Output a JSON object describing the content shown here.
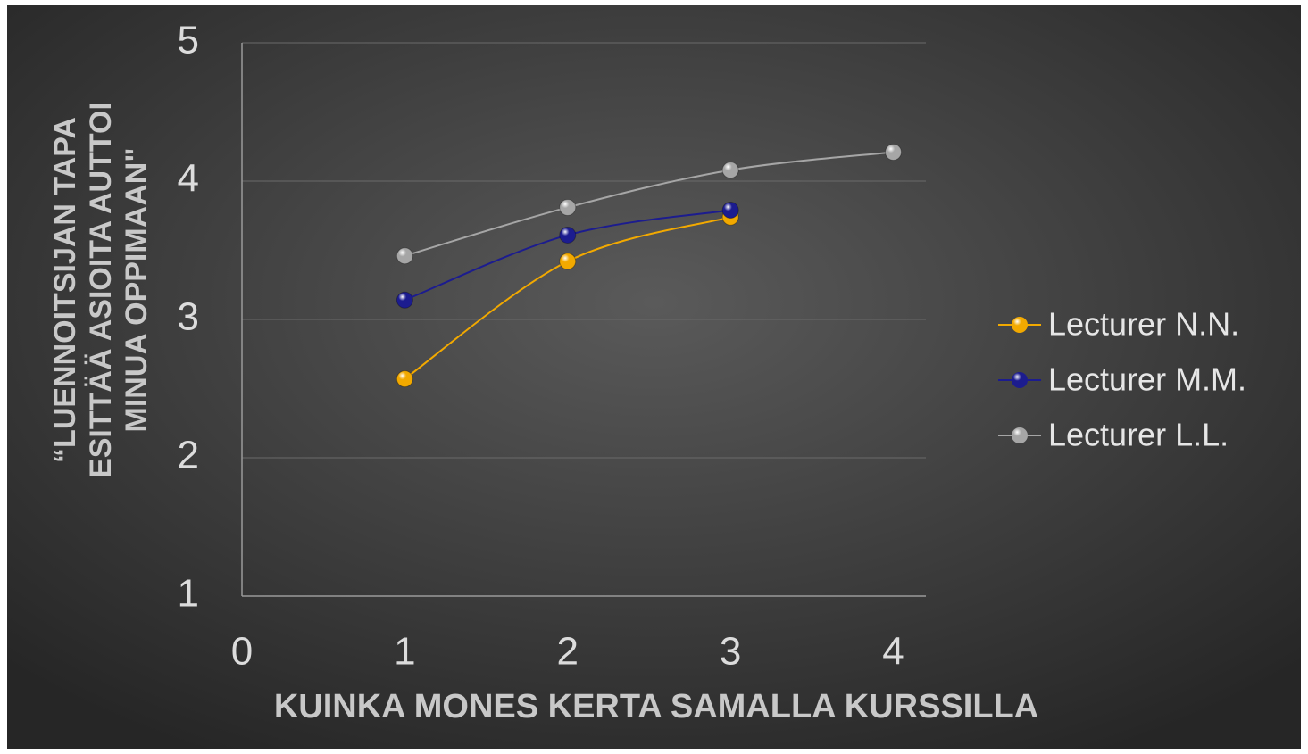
{
  "chart_data": {
    "type": "line",
    "xlabel": "KUINKA MONES KERTA SAMALLA KURSSILLA",
    "ylabel": [
      "“LUENNOITSIJAN TAPA",
      "ESITTÄÄ ASIOITA AUTTOI",
      "MINUA OPPIMAAN\""
    ],
    "xlim": [
      0,
      4.2
    ],
    "xticks": [
      0,
      1,
      2,
      3,
      4
    ],
    "ylim": [
      1,
      5
    ],
    "yticks": [
      1,
      2,
      3,
      4,
      5
    ],
    "grid": true,
    "legend": "right",
    "smooth": true,
    "series": [
      {
        "name": "Lecturer N.N.",
        "color": "#f2a900",
        "x": [
          1,
          2,
          3
        ],
        "values": [
          2.57,
          3.42,
          3.74
        ]
      },
      {
        "name": "Lecturer M.M.",
        "color": "#1c1c8f",
        "x": [
          1,
          2,
          3
        ],
        "values": [
          3.14,
          3.61,
          3.79
        ]
      },
      {
        "name": "Lecturer L.L.",
        "color": "#a6a6a6",
        "x": [
          1,
          2,
          3,
          4
        ],
        "values": [
          3.46,
          3.81,
          4.08,
          4.21
        ]
      }
    ]
  }
}
